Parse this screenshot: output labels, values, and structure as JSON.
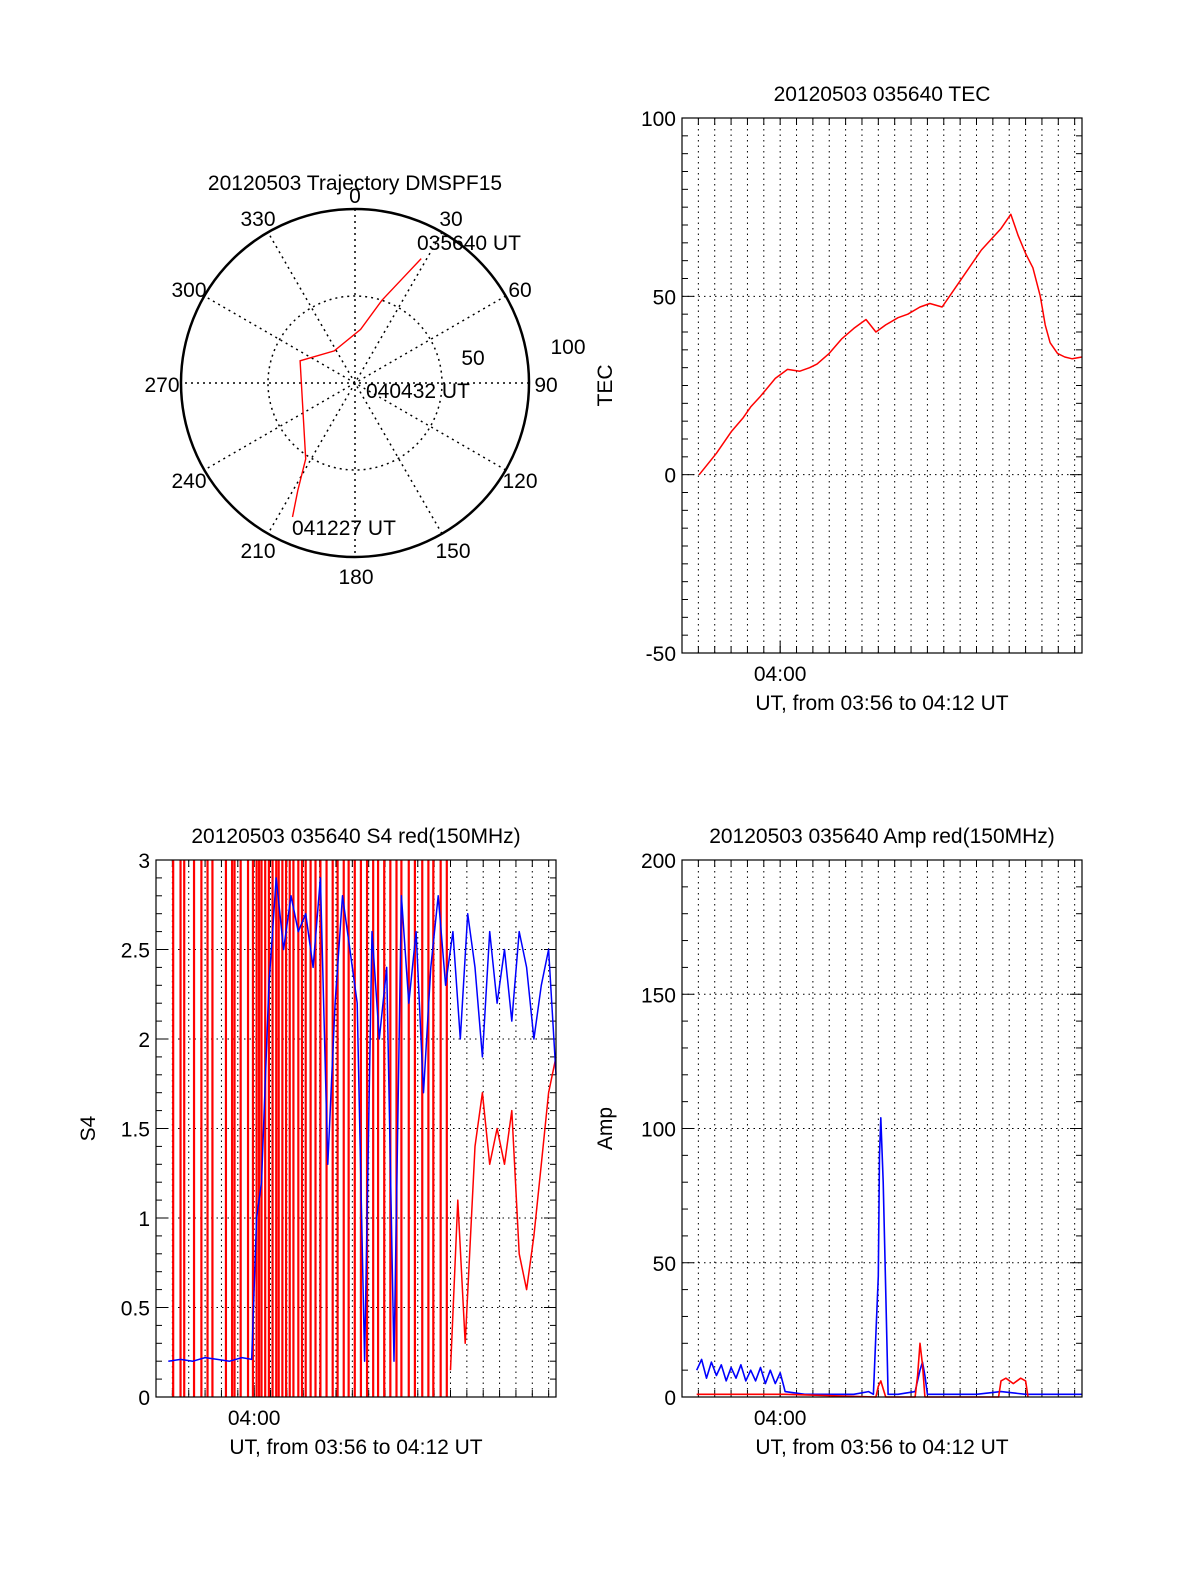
{
  "colors": {
    "red": "#ff0000",
    "blue": "#0000ff",
    "axis": "#000000",
    "grid": "#000000"
  },
  "chart_data": [
    {
      "id": "trajectory",
      "type": "polar",
      "title": "20120503 Trajectory DMSPF15",
      "azimuth_labels": [
        "0",
        "30",
        "60",
        "90",
        "120",
        "150",
        "180",
        "210",
        "240",
        "270",
        "300",
        "330"
      ],
      "radial_labels": [
        "50",
        "100"
      ],
      "grid": true,
      "series": [
        {
          "color": "red",
          "points": [
            [
              28,
              81
            ],
            [
              25,
              68
            ],
            [
              18,
              50
            ],
            [
              6,
              31
            ],
            [
              -33,
              22
            ],
            [
              -68,
              34
            ],
            [
              -147,
              52
            ],
            [
              -152,
              70
            ],
            [
              -155,
              85
            ]
          ]
        }
      ],
      "annotations": [
        {
          "text": "035640 UT",
          "azimuth": 28,
          "radius": 81
        },
        {
          "text": "040432 UT",
          "azimuth": 6,
          "radius": 31
        },
        {
          "text": "041227 UT",
          "azimuth": -152,
          "radius": 70
        }
      ]
    },
    {
      "id": "tec",
      "type": "line",
      "title": "20120503 035640 TEC",
      "xlabel": "UT, from 03:56 to 04:12 UT",
      "ylabel": "TEC",
      "xlim": [
        -4,
        12.3
      ],
      "ylim": [
        -50,
        100
      ],
      "yticks": [
        -50,
        0,
        50,
        100
      ],
      "xticks": [
        {
          "value": 0,
          "label": "04:00"
        }
      ],
      "grid": true,
      "series": [
        {
          "color": "red",
          "x": [
            -3.3,
            -2.6,
            -2.0,
            -1.5,
            -1.2,
            -0.8,
            -0.2,
            0.3,
            0.8,
            1.2,
            1.5,
            2.0,
            2.5,
            3.0,
            3.5,
            3.9,
            4.3,
            4.8,
            5.2,
            5.7,
            6.1,
            6.6,
            7.0,
            7.5,
            7.9,
            8.2,
            8.6,
            9.0,
            9.4,
            9.7,
            10.0,
            10.3,
            10.6,
            10.8,
            11.0,
            11.3,
            11.6,
            11.9,
            12.3
          ],
          "y": [
            0,
            6,
            12,
            16,
            19,
            22,
            27,
            29.5,
            29,
            30,
            31,
            34,
            38,
            41,
            43.5,
            40,
            42,
            44,
            45,
            47,
            48,
            47,
            51,
            56,
            60,
            63,
            66,
            69,
            73,
            67,
            62,
            58,
            50,
            42,
            37,
            34,
            33,
            32.5,
            33
          ]
        }
      ]
    },
    {
      "id": "s4",
      "type": "line",
      "title": "20120503 035640 S4 red(150MHz)",
      "xlabel": "UT, from 03:56 to 04:12 UT",
      "ylabel": "S4",
      "xlim": [
        -4,
        12.3
      ],
      "ylim": [
        0,
        3
      ],
      "yticks": [
        0,
        0.5,
        1,
        1.5,
        2,
        2.5,
        3
      ],
      "ytick_labels": [
        "0",
        "0.5",
        "1",
        "1.5",
        "2",
        "2.5",
        "3"
      ],
      "xticks": [
        {
          "value": 0,
          "label": "04:00"
        }
      ],
      "grid": true,
      "series": [
        {
          "color": "red",
          "spikes_x": [
            -3.3,
            -3.0,
            -2.85,
            -2.45,
            -2.15,
            -1.9,
            -1.7,
            -1.15,
            -0.9,
            -0.8,
            -0.55,
            -0.25,
            -0.05,
            0.1,
            0.2,
            0.3,
            0.45,
            0.6,
            0.75,
            0.9,
            1.0,
            1.15,
            1.3,
            1.45,
            1.6,
            1.8,
            1.95,
            2.1,
            2.3,
            2.5,
            2.7,
            2.95,
            3.2,
            3.4,
            3.65,
            3.85,
            4.1,
            4.35,
            4.6,
            4.85,
            5.05,
            5.3,
            5.55,
            5.8,
            6.0,
            6.3,
            6.55,
            6.85,
            7.1,
            7.3,
            7.6,
            7.85
          ],
          "x": [
            8.0,
            8.3,
            8.6,
            9.0,
            9.3,
            9.6,
            9.9,
            10.2,
            10.5,
            10.8,
            11.1,
            11.4,
            11.7,
            12.0,
            12.3
          ],
          "y": [
            0.15,
            1.1,
            0.3,
            1.4,
            1.7,
            1.3,
            1.5,
            1.3,
            1.6,
            0.8,
            0.6,
            0.9,
            1.3,
            1.7,
            1.9
          ]
        },
        {
          "color": "blue",
          "x": [
            -3.5,
            -3.0,
            -2.5,
            -2.0,
            -1.5,
            -1.0,
            -0.5,
            -0.1,
            0.1,
            0.3,
            0.6,
            0.9,
            1.2,
            1.5,
            1.8,
            2.1,
            2.4,
            2.7,
            3.0,
            3.3,
            3.6,
            3.9,
            4.2,
            4.5,
            4.8,
            5.1,
            5.4,
            5.7,
            6.0,
            6.3,
            6.6,
            6.9,
            7.2,
            7.5,
            7.8,
            8.1,
            8.4,
            8.7,
            9.0,
            9.3,
            9.6,
            9.9,
            10.2,
            10.5,
            10.8,
            11.1,
            11.4,
            11.7,
            12.0,
            12.3
          ],
          "y": [
            0.2,
            0.21,
            0.2,
            0.22,
            0.21,
            0.2,
            0.22,
            0.21,
            1.0,
            1.2,
            2.3,
            2.9,
            2.5,
            2.8,
            2.6,
            2.7,
            2.4,
            2.9,
            1.3,
            2.2,
            2.8,
            2.5,
            2.2,
            0.2,
            2.6,
            2.0,
            2.4,
            0.2,
            2.8,
            2.2,
            2.6,
            1.7,
            2.4,
            2.8,
            2.3,
            2.6,
            2.0,
            2.7,
            2.4,
            1.9,
            2.6,
            2.2,
            2.5,
            2.1,
            2.6,
            2.4,
            2.0,
            2.3,
            2.5,
            1.8
          ]
        }
      ]
    },
    {
      "id": "amp",
      "type": "line",
      "title": "20120503 035640 Amp red(150MHz)",
      "xlabel": "UT, from 03:56 to 04:12 UT",
      "ylabel": "Amp",
      "xlim": [
        -4,
        12.3
      ],
      "ylim": [
        0,
        200
      ],
      "yticks": [
        0,
        50,
        100,
        150,
        200
      ],
      "xticks": [
        {
          "value": 0,
          "label": "04:00"
        }
      ],
      "grid": true,
      "series": [
        {
          "color": "blue",
          "x": [
            -3.4,
            -3.2,
            -3.0,
            -2.8,
            -2.6,
            -2.4,
            -2.2,
            -2.0,
            -1.8,
            -1.6,
            -1.4,
            -1.2,
            -1.0,
            -0.8,
            -0.6,
            -0.4,
            -0.2,
            0.0,
            0.15,
            0.2,
            1.0,
            2.0,
            3.0,
            3.6,
            3.8,
            4.0,
            4.05,
            4.1,
            4.2,
            4.3,
            4.4,
            4.8,
            5.5,
            5.7,
            5.8,
            5.9,
            6.0,
            6.3,
            7.0,
            8.0,
            9.0,
            10.0,
            11.0,
            12.3
          ],
          "y": [
            10,
            14,
            7,
            13,
            8,
            12,
            6,
            11,
            7,
            12,
            6,
            10,
            6,
            11,
            5,
            10,
            5,
            9,
            4,
            2,
            1,
            1,
            1,
            2,
            1,
            45,
            90,
            104,
            80,
            40,
            1,
            1,
            2,
            10,
            13,
            8,
            1,
            1,
            1,
            1,
            2,
            1,
            1,
            1
          ]
        },
        {
          "color": "red",
          "x": [
            -3.4,
            0.2,
            3.9,
            4.0,
            4.1,
            4.2,
            4.3,
            5.5,
            5.6,
            5.7,
            5.8,
            5.9,
            8.9,
            9.0,
            9.2,
            9.5,
            9.8,
            10.0,
            10.1
          ],
          "y": [
            1,
            1,
            0,
            4,
            6,
            3,
            0,
            0,
            8,
            20,
            12,
            0,
            0,
            6,
            7,
            5,
            7,
            6,
            0
          ]
        }
      ]
    }
  ]
}
